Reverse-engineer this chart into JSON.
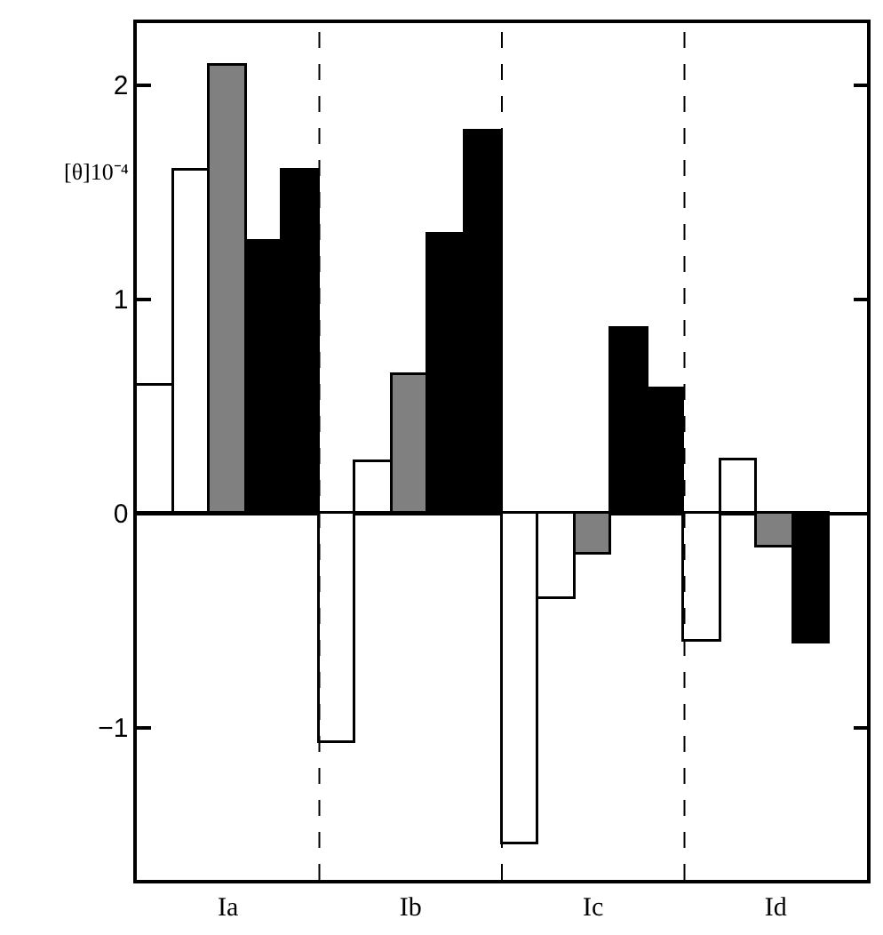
{
  "chart_data": {
    "type": "bar",
    "ylabel": "[θ]10⁻⁴",
    "categories": [
      "Ia",
      "Ib",
      "Ic",
      "Id"
    ],
    "series": [
      {
        "color": "#ffffff",
        "values": [
          0.6,
          -1.07,
          -1.54,
          -0.6
        ]
      },
      {
        "color": "#ffffff",
        "values": [
          1.6,
          0.24,
          -0.4,
          0.25
        ]
      },
      {
        "color": "#808080",
        "values": [
          2.09,
          0.65,
          -0.19,
          -0.16
        ]
      },
      {
        "color": "#000000",
        "values": [
          1.27,
          1.3,
          0.86,
          -0.61
        ]
      },
      {
        "color": "#000000",
        "values": [
          1.6,
          1.78,
          0.58,
          null
        ]
      }
    ],
    "ylim": [
      -1.71,
      2.29
    ],
    "yticks": [
      -1,
      0,
      1,
      2
    ]
  }
}
